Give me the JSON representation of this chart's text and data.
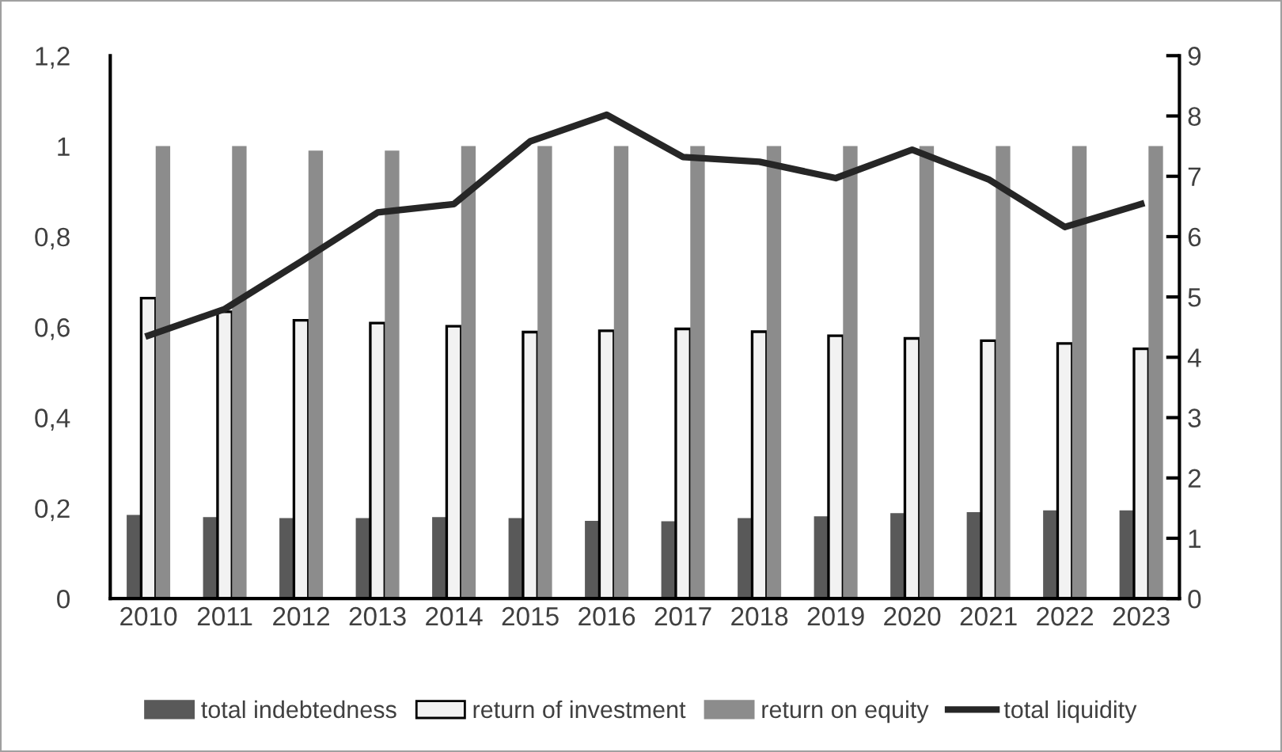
{
  "chart_data": {
    "type": "bar",
    "categories": [
      "2010",
      "2011",
      "2012",
      "2013",
      "2014",
      "2015",
      "2016",
      "2017",
      "2018",
      "2019",
      "2020",
      "2021",
      "2022",
      "2023"
    ],
    "series": [
      {
        "name": "total indebtedness",
        "color": "#595959",
        "values": [
          0.185,
          0.18,
          0.178,
          0.178,
          0.18,
          0.178,
          0.172,
          0.171,
          0.178,
          0.182,
          0.189,
          0.191,
          0.195,
          0.195
        ]
      },
      {
        "name": "return of investment",
        "color": "#f2f2f2",
        "values": [
          0.664,
          0.634,
          0.615,
          0.609,
          0.602,
          0.589,
          0.592,
          0.596,
          0.59,
          0.581,
          0.575,
          0.57,
          0.564,
          0.552
        ]
      },
      {
        "name": "return on equity",
        "color": "#8c8c8c",
        "values": [
          1,
          1,
          0.99,
          0.99,
          1,
          1,
          1,
          1,
          1,
          1,
          1,
          1,
          1,
          1
        ]
      },
      {
        "name": "total liquidity",
        "type": "line",
        "axis": "y2",
        "color": "#262626",
        "values": [
          4.36,
          4.8,
          5.59,
          6.4,
          6.54,
          7.58,
          8.02,
          7.32,
          7.24,
          6.97,
          7.44,
          6.95,
          6.16,
          6.54
        ]
      }
    ],
    "ylim": [
      0,
      1.2
    ],
    "yticks": [
      0,
      {
        "value": 0.2,
        "label": "0,2"
      },
      {
        "value": 0.4,
        "label": "0,4"
      },
      {
        "value": 0.6,
        "label": "0,6"
      },
      {
        "value": 0.8,
        "label": "0,8"
      },
      1,
      {
        "value": 1.2,
        "label": "1,2"
      }
    ],
    "y2lim": [
      0,
      9
    ],
    "y2ticks": [
      0,
      1,
      2,
      3,
      4,
      5,
      6,
      7,
      8,
      9
    ],
    "grid": false,
    "legend": "bottom",
    "marker": "none",
    "line_style": "solid"
  }
}
